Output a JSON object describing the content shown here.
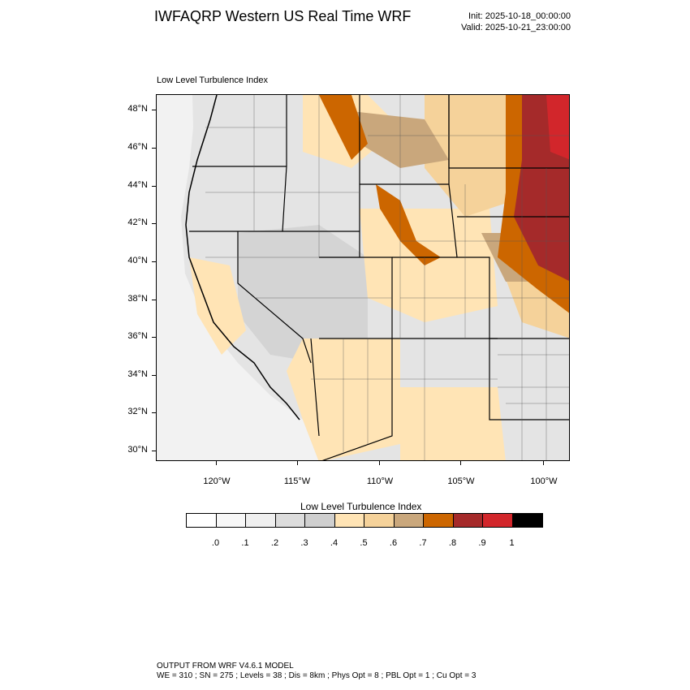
{
  "header": {
    "title": "IWFAQRP Western US Real Time WRF",
    "init": "Init: 2025-10-18_00:00:00",
    "valid": "Valid: 2025-10-21_23:00:00"
  },
  "map": {
    "subtitle": "Low Level Turbulence Index",
    "lat_labels": [
      "48°N",
      "46°N",
      "44°N",
      "42°N",
      "40°N",
      "38°N",
      "36°N",
      "34°N",
      "32°N",
      "30°N"
    ],
    "lon_labels": [
      "120°W",
      "115°W",
      "110°W",
      "105°W",
      "100°W"
    ]
  },
  "colorbar": {
    "title": "Low Level Turbulence Index",
    "colors": [
      "#ffffff",
      "#f7f7f7",
      "#efefef",
      "#dcdcdc",
      "#cfcfcf",
      "#ffe4b5",
      "#f5d29a",
      "#c9a77c",
      "#cc6600",
      "#a52a2a",
      "#d2262b",
      "#000000"
    ],
    "labels": [
      ".0",
      ".1",
      ".2",
      ".3",
      ".4",
      ".5",
      ".6",
      ".7",
      ".8",
      ".9",
      "1"
    ]
  },
  "footer": {
    "line1": "OUTPUT FROM WRF V4.6.1 MODEL",
    "line2": "WE = 310 ; SN = 275 ; Levels = 38 ; Dis = 8km ; Phys Opt = 8 ; PBL Opt = 1 ; Cu Opt = 3"
  }
}
